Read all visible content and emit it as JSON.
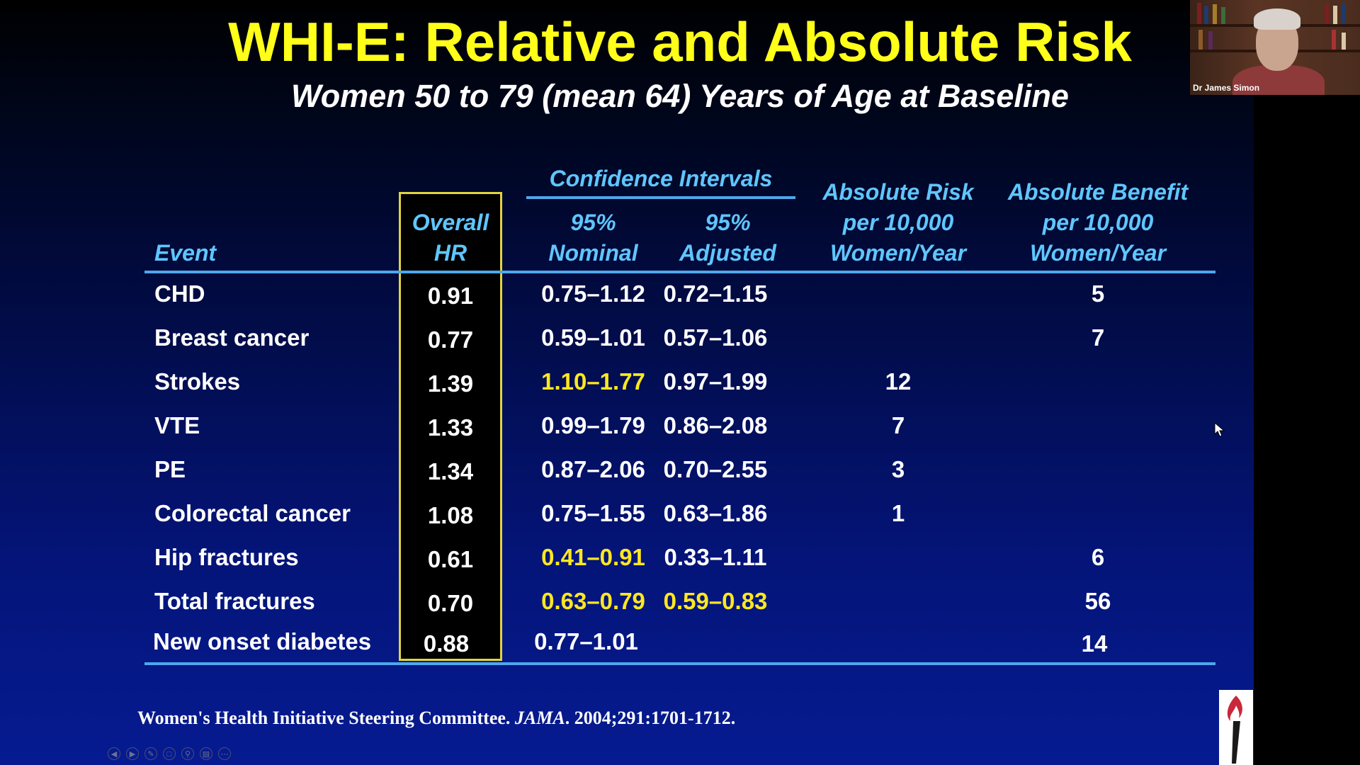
{
  "slide": {
    "title": "WHI-E: Relative and Absolute Risk",
    "subtitle": "Women 50 to 79 (mean 64) Years of Age at Baseline",
    "headers": {
      "event": "Event",
      "overall_hr": [
        "Overall",
        "HR"
      ],
      "ci_group": "Confidence  Intervals",
      "nominal": [
        "95%",
        "Nominal"
      ],
      "adjusted": [
        "95%",
        "Adjusted"
      ],
      "risk": [
        "Absolute Risk",
        "per 10,000",
        "Women/Year"
      ],
      "benefit": [
        "Absolute Benefit",
        "per 10,000",
        "Women/Year"
      ]
    },
    "rows": [
      {
        "event": "CHD",
        "hr": "0.91",
        "nominal": "0.75–1.12",
        "adjusted": "0.72–1.15",
        "risk": "",
        "benefit": "5",
        "nominal_hl": false,
        "adjusted_hl": false
      },
      {
        "event": "Breast cancer",
        "hr": "0.77",
        "nominal": "0.59–1.01",
        "adjusted": "0.57–1.06",
        "risk": "",
        "benefit": "7",
        "nominal_hl": false,
        "adjusted_hl": false
      },
      {
        "event": "Strokes",
        "hr": "1.39",
        "nominal": "1.10–1.77",
        "adjusted": "0.97–1.99",
        "risk": "12",
        "benefit": "",
        "nominal_hl": true,
        "adjusted_hl": false
      },
      {
        "event": "VTE",
        "hr": "1.33",
        "nominal": "0.99–1.79",
        "adjusted": "0.86–2.08",
        "risk": "7",
        "benefit": "",
        "nominal_hl": false,
        "adjusted_hl": false
      },
      {
        "event": "PE",
        "hr": "1.34",
        "nominal": "0.87–2.06",
        "adjusted": "0.70–2.55",
        "risk": "3",
        "benefit": "",
        "nominal_hl": false,
        "adjusted_hl": false
      },
      {
        "event": "Colorectal cancer",
        "hr": "1.08",
        "nominal": "0.75–1.55",
        "adjusted": "0.63–1.86",
        "risk": "1",
        "benefit": "",
        "nominal_hl": false,
        "adjusted_hl": false
      },
      {
        "event": "Hip fractures",
        "hr": "0.61",
        "nominal": "0.41–0.91",
        "adjusted": "0.33–1.11",
        "risk": "",
        "benefit": "6",
        "nominal_hl": true,
        "adjusted_hl": false
      },
      {
        "event": "Total fractures",
        "hr": "0.70",
        "nominal": "0.63–0.79",
        "adjusted": "0.59–0.83",
        "risk": "",
        "benefit": "56",
        "nominal_hl": true,
        "adjusted_hl": true
      },
      {
        "event": "New onset diabetes",
        "hr": "0.88",
        "nominal": "0.77–1.01",
        "adjusted": "",
        "risk": "",
        "benefit": "14",
        "nominal_hl": false,
        "adjusted_hl": false
      }
    ],
    "citation": {
      "before": "Women's Health Initiative Steering Committee. ",
      "journal": "JAMA",
      "after": ". 2004;291:1701-1712."
    }
  },
  "webcam": {
    "name": "Dr James Simon"
  },
  "toolbar": {
    "icons": [
      "previous-icon",
      "next-icon",
      "pen-icon",
      "slides-icon",
      "zoom-icon",
      "subtitles-icon",
      "more-icon"
    ]
  },
  "colors": {
    "title": "#ffff1a",
    "header": "#5fc6ff",
    "highlight": "#ffe81f",
    "hr_box_border": "#e3d43a",
    "rule": "#4da8ea"
  }
}
